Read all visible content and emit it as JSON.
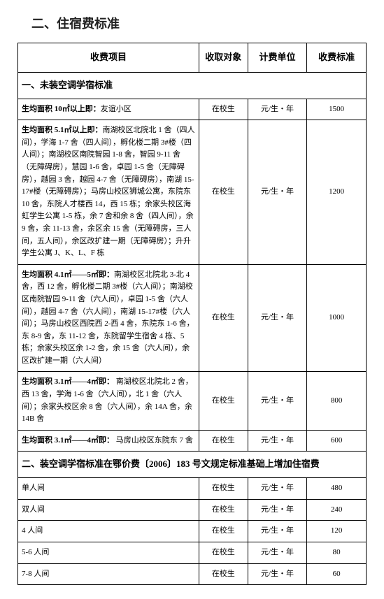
{
  "title": "二、住宿费标准",
  "headers": {
    "item": "收费项目",
    "target": "收取对象",
    "unit": "计费单位",
    "fee": "收费标准"
  },
  "section1": "一、未装空调学宿标准",
  "section2": "二、装空调学宿标准在鄂价费〔2006〕183 号文规定标准基础上增加住宿费",
  "target_text": "在校生",
  "unit_text": "元/生・年",
  "rows1": [
    {
      "bold": "生均面积 10㎡以上即：",
      "desc": "友谊小区",
      "fee": "1500"
    },
    {
      "bold": "生均面积 5.1㎡以上即：",
      "desc": "南湖校区北院北 1 舍（四人间），学海 1-7 舍（四人间），孵化楼二期 3#楼（四人间）；南湖校区南院智园 1-8 舍，智园 9-11 舍（无障碍房），慧园 1-6 舍，卓园 1-5 舍（无障碍房），越园 3 舍，越园 4-7 舍（无障碍房），南湖 15-17#楼（无障碍房）；马房山校区狮城公寓，东院东 10 舍，东院人才楼西 14，西 15 栋；余家头校区海虹学生公寓 1-5 栋，余 7 舍和余 8 舍（四人间），余 9 舍，余 11-13 舍，余区余 15 舍（无障碍房，三人间，五人间），余区改扩建一期（无障碍房）；升升学生公寓 J、K、L、F 栋",
      "fee": "1200"
    },
    {
      "bold": "生均面积 4.1㎡——5㎡即：",
      "desc": "南湖校区北院北 3-北 4 舍，西 12 舍，孵化楼二期 3#楼（六人间）；南湖校区南院智园 9-11 舍（六人间），卓园 1-5 舍（六人间），越园 4-7 舍（六人间），南湖 15-17#楼（六人间）；马房山校区西院西 2-西 4 舍，东院东 1-6 舍，东 8-9 舍，东 11-12 舍，东院留学生宿舍 4 栋、5 栋；余家头校区余 1-2 舍，余 15 舍（六人间），余区改扩建一期（六人间）",
      "fee": "1000"
    },
    {
      "bold": "生均面积 3.1㎡——4㎡即：",
      "desc": " 南湖校区北院北 2 舍，西 13 舍，学海 1-6 舍（六人间），北 1 舍（六人间）；余家头校区余 8 舍（六人间），余 14A 舍，余 14B 舍",
      "fee": "800"
    },
    {
      "bold": "生均面积 3.1㎡——4㎡即：",
      "desc": " 马房山校区东院东 7 舍",
      "fee": "600"
    }
  ],
  "rows2": [
    {
      "item": "单人间",
      "fee": "480"
    },
    {
      "item": "双人间",
      "fee": "240"
    },
    {
      "item": "4 人间",
      "fee": "120"
    },
    {
      "item": "5-6 人间",
      "fee": "80"
    },
    {
      "item": "7-8 人间",
      "fee": "60"
    }
  ]
}
